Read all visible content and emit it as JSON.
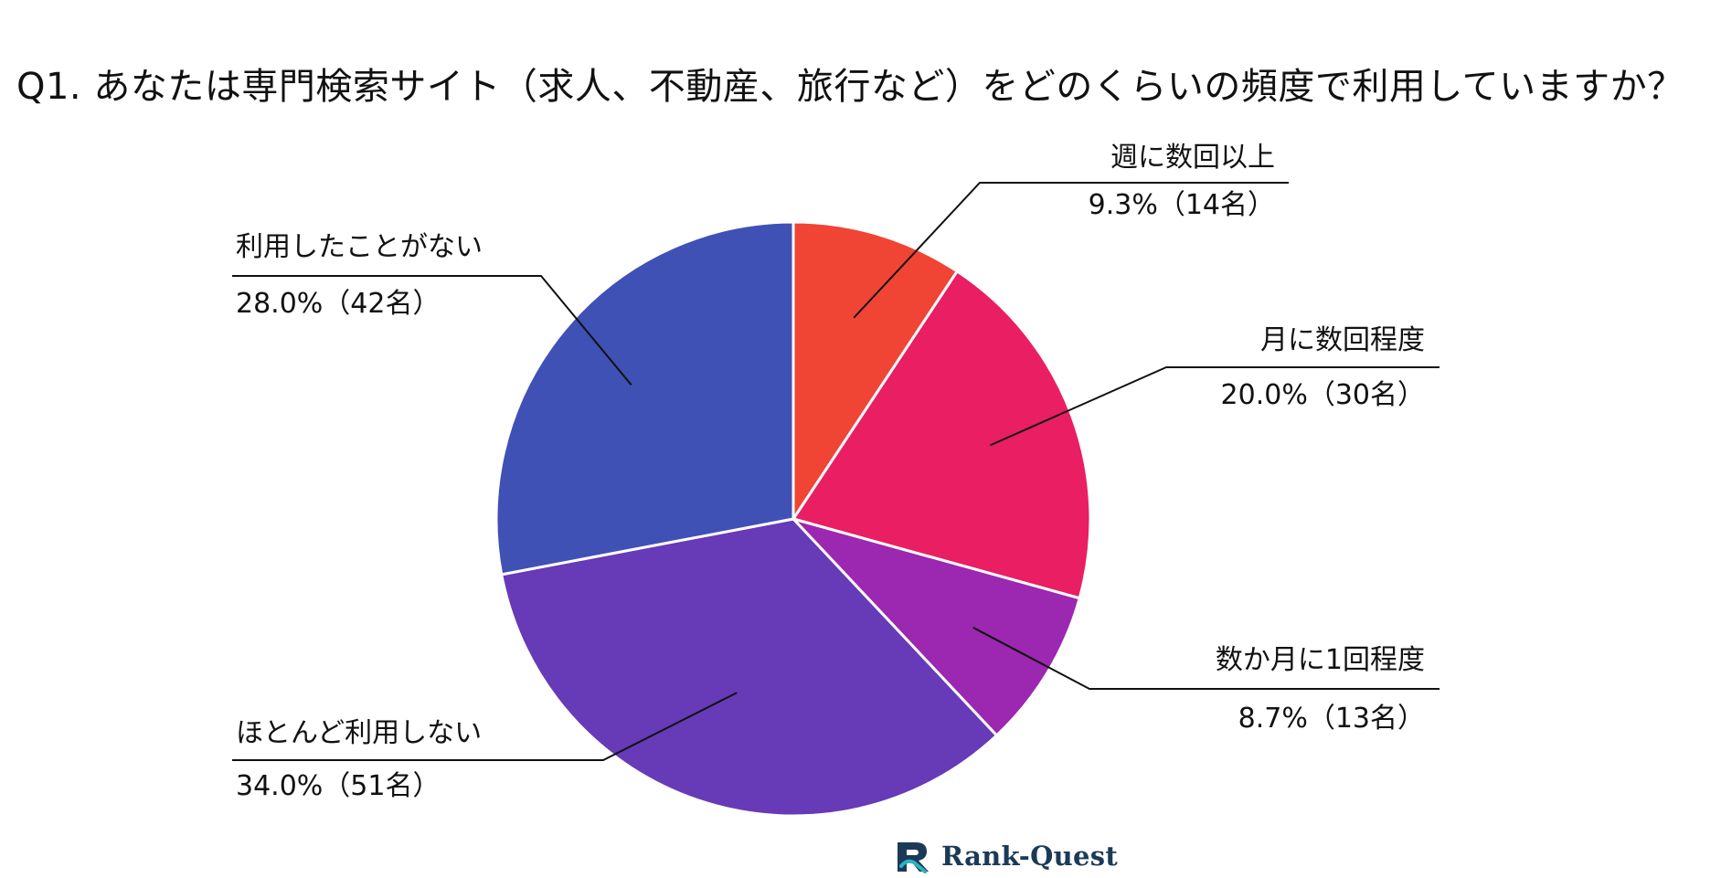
{
  "title": "Q1. あなたは専門検索サイト（求人、不動産、旅行など）をどのくらいの頻度で利用していますか？",
  "brand": {
    "name": "Rank-Quest",
    "logo_icon": "rank-quest-logo-icon",
    "color": "#1b3a57",
    "accent": "#2bb3c0"
  },
  "chart_data": {
    "type": "pie",
    "start_angle_deg": 0,
    "direction": "clockwise",
    "slices": [
      {
        "label": "週に数回以上",
        "value_label": "9.3%（14名）",
        "percent": 9.3,
        "count": 14,
        "color": "#f04435"
      },
      {
        "label": "月に数回程度",
        "value_label": "20.0%（30名）",
        "percent": 20.0,
        "count": 30,
        "color": "#e91e63"
      },
      {
        "label": "数か月に1回程度",
        "value_label": "8.7%（13名）",
        "percent": 8.7,
        "count": 13,
        "color": "#9c27b0"
      },
      {
        "label": "ほとんど利用しない",
        "value_label": "34.0%（51名）",
        "percent": 34.0,
        "count": 51,
        "color": "#673ab7"
      },
      {
        "label": "利用したことがない",
        "value_label": "28.0%（42名）",
        "percent": 28.0,
        "count": 42,
        "color": "#3f51b5"
      }
    ]
  }
}
